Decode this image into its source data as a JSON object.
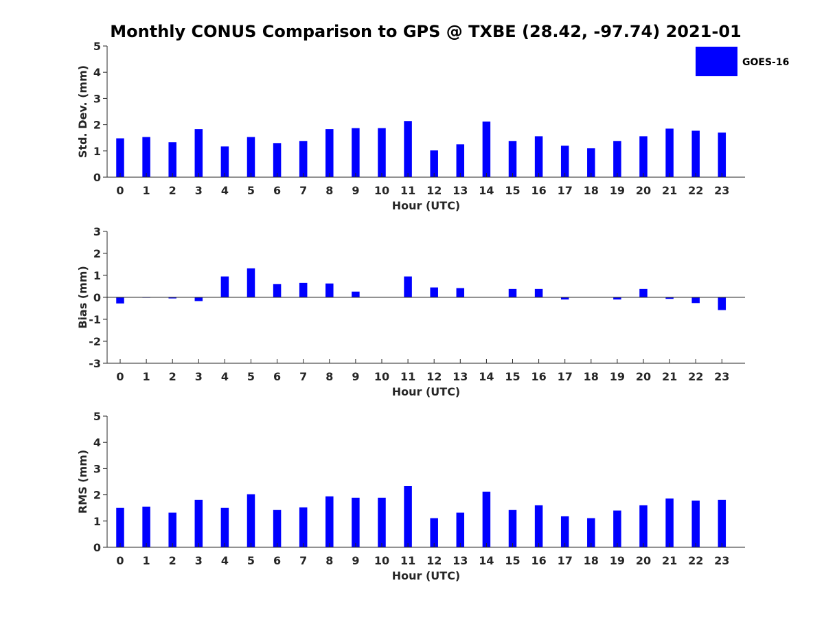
{
  "figure": {
    "title": "Monthly CONUS Comparison to GPS @ TXBE (28.42, -97.74) 2021-01",
    "legend": {
      "label": "GOES-16",
      "color": "#0000ff",
      "placement": "top-right"
    },
    "bar_color": "#0000ff"
  },
  "chart_data": [
    {
      "type": "bar",
      "ylabel": "Std. Dev. (mm)",
      "xlabel": "Hour (UTC)",
      "ylim": [
        0,
        5
      ],
      "yticks": [
        0,
        1,
        2,
        3,
        4,
        5
      ],
      "categories": [
        "0",
        "1",
        "2",
        "3",
        "4",
        "5",
        "6",
        "7",
        "8",
        "9",
        "10",
        "11",
        "12",
        "13",
        "14",
        "15",
        "16",
        "17",
        "18",
        "19",
        "20",
        "21",
        "22",
        "23"
      ],
      "series": [
        {
          "name": "GOES-16",
          "values": [
            1.48,
            1.53,
            1.33,
            1.83,
            1.17,
            1.53,
            1.3,
            1.38,
            1.83,
            1.87,
            1.87,
            2.14,
            1.02,
            1.25,
            2.12,
            1.38,
            1.56,
            1.2,
            1.1,
            1.38,
            1.56,
            1.85,
            1.77,
            1.7
          ]
        }
      ]
    },
    {
      "type": "bar",
      "ylabel": "Bias (mm)",
      "xlabel": "Hour (UTC)",
      "ylim": [
        -3,
        3
      ],
      "yticks": [
        -3,
        -2,
        -1,
        0,
        1,
        2,
        3
      ],
      "categories": [
        "0",
        "1",
        "2",
        "3",
        "4",
        "5",
        "6",
        "7",
        "8",
        "9",
        "10",
        "11",
        "12",
        "13",
        "14",
        "15",
        "16",
        "17",
        "18",
        "19",
        "20",
        "21",
        "22",
        "23"
      ],
      "series": [
        {
          "name": "GOES-16",
          "values": [
            -0.28,
            -0.02,
            -0.05,
            -0.17,
            0.95,
            1.32,
            0.6,
            0.66,
            0.63,
            0.26,
            0.01,
            0.95,
            0.45,
            0.42,
            0.0,
            0.38,
            0.38,
            -0.1,
            -0.01,
            -0.1,
            0.38,
            -0.07,
            -0.26,
            -0.58
          ]
        }
      ]
    },
    {
      "type": "bar",
      "ylabel": "RMS (mm)",
      "xlabel": "Hour (UTC)",
      "ylim": [
        0,
        5
      ],
      "yticks": [
        0,
        1,
        2,
        3,
        4,
        5
      ],
      "categories": [
        "0",
        "1",
        "2",
        "3",
        "4",
        "5",
        "6",
        "7",
        "8",
        "9",
        "10",
        "11",
        "12",
        "13",
        "14",
        "15",
        "16",
        "17",
        "18",
        "19",
        "20",
        "21",
        "22",
        "23"
      ],
      "series": [
        {
          "name": "GOES-16",
          "values": [
            1.5,
            1.55,
            1.32,
            1.81,
            1.5,
            2.02,
            1.42,
            1.52,
            1.94,
            1.89,
            1.89,
            2.33,
            1.11,
            1.32,
            2.12,
            1.42,
            1.6,
            1.18,
            1.11,
            1.4,
            1.6,
            1.86,
            1.78,
            1.81
          ]
        }
      ]
    }
  ]
}
